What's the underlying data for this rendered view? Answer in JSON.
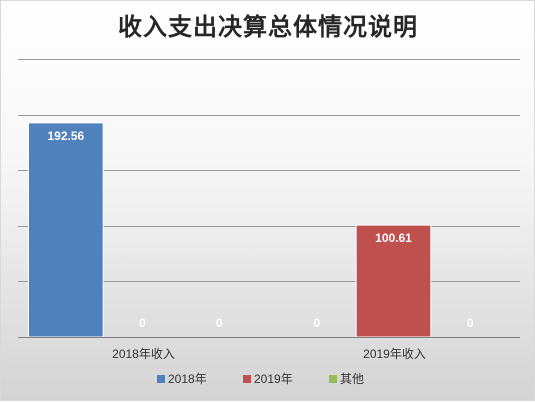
{
  "chart_data": {
    "type": "bar",
    "title": "收入支出决算总体情况说明",
    "categories": [
      "2018年收入",
      "2019年收入"
    ],
    "series": [
      {
        "name": "2018年",
        "color": "#4f81bd",
        "values": [
          192.56,
          0
        ]
      },
      {
        "name": "2019年",
        "color": "#c0504d",
        "values": [
          0,
          100.61
        ]
      },
      {
        "name": "其他",
        "color": "#9bbb59",
        "values": [
          0,
          0
        ]
      }
    ],
    "ylim": [
      0,
      250
    ],
    "grid": true,
    "legend": "bottom",
    "show_y_ticks": false
  }
}
